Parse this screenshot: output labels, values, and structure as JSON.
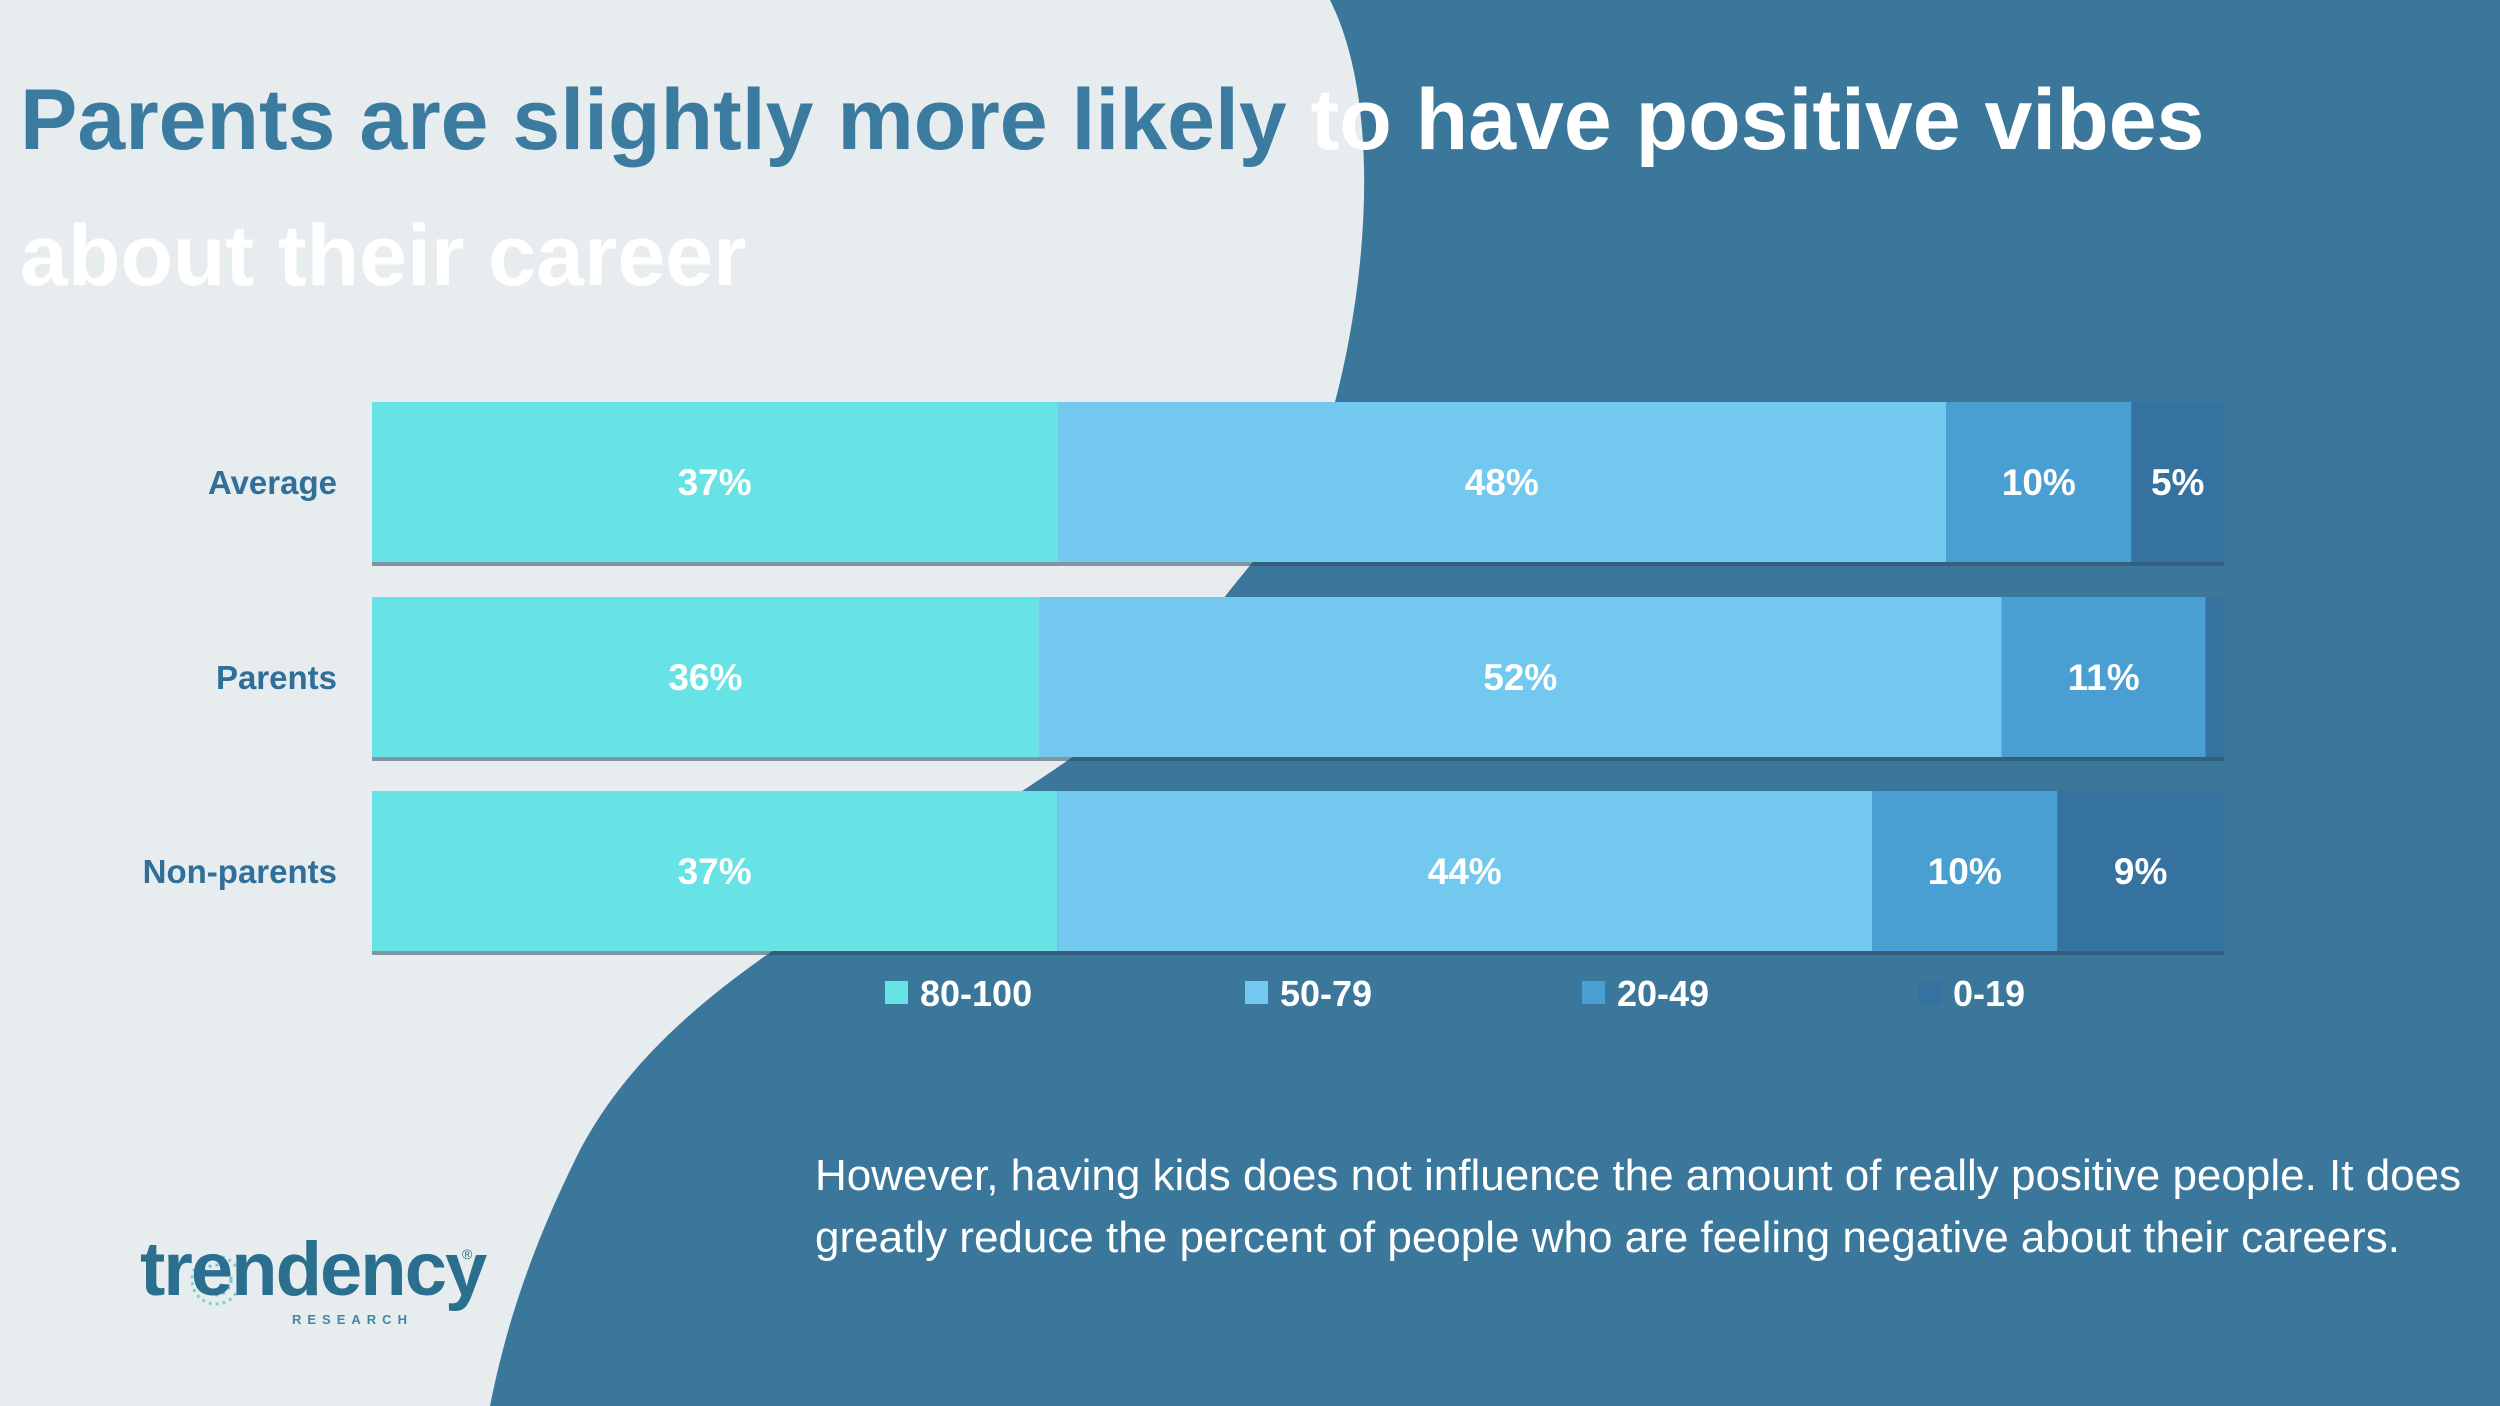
{
  "title": {
    "part1": "Parents are slightly more likely",
    "part2": " to have positive vibes about their career"
  },
  "body_text": "However, having kids does not influence the amount of really positive people. It does greatly reduce the percent of people who are feeling negative about their careers.",
  "logo": {
    "word": "trendency",
    "registered": "®",
    "sub": "RESEARCH"
  },
  "colors": {
    "background_light": "#e7ecef",
    "background_dark": "#3a779a",
    "title": "#3b7ba0",
    "category_label": "#2f6f99",
    "series": [
      "#67e3e6",
      "#72c8ee",
      "#4a9fd2",
      "#36729f"
    ]
  },
  "chart_data": {
    "type": "bar",
    "orientation": "horizontal",
    "stacked": true,
    "title": "Parents are slightly more likely to have positive vibes about their career",
    "categories": [
      "Average",
      "Parents",
      "Non-parents"
    ],
    "series": [
      {
        "name": "80-100",
        "values": [
          37,
          36,
          37
        ],
        "labels": [
          "37%",
          "36%",
          "37%"
        ]
      },
      {
        "name": "50-79",
        "values": [
          48,
          52,
          44
        ],
        "labels": [
          "48%",
          "52%",
          "44%"
        ]
      },
      {
        "name": "20-49",
        "values": [
          10,
          11,
          10
        ],
        "labels": [
          "10%",
          "11%",
          "10%"
        ]
      },
      {
        "name": "0-19",
        "values": [
          5,
          1,
          9
        ],
        "labels": [
          "5%",
          "",
          "9%"
        ]
      }
    ],
    "xlim": [
      0,
      100
    ],
    "xlabel": "",
    "ylabel": "",
    "legend": "bottom",
    "grid": false
  }
}
